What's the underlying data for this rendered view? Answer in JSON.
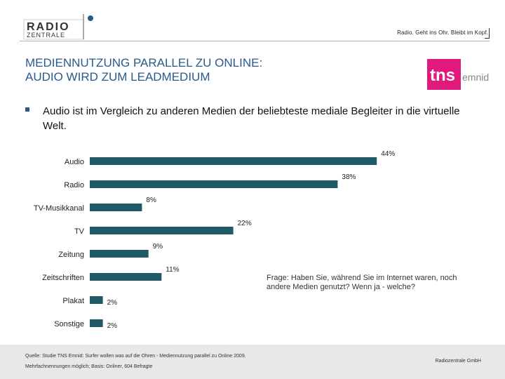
{
  "header": {
    "logo_word1": "RADIO",
    "logo_word2": "ZENTRALE",
    "tagline": "Radio. Geht ins Ohr. Bleibt im Kopf."
  },
  "title_lines": [
    "MEDIENNUTZUNG PARALLEL ZU ONLINE:",
    "AUDIO WIRD ZUM LEADMEDIUM"
  ],
  "bullet": "Audio ist im Vergleich zu anderen Medien der beliebteste mediale Begleiter in die virtuelle Welt.",
  "tns_logo": {
    "word1": "tns",
    "word2": "emnid",
    "color": "#e0197d"
  },
  "question": "Frage: Haben Sie, während Sie im Internet waren, noch andere Medien genutzt? Wenn ja - welche?",
  "footer": {
    "source_line1": "Quelle: Studie TNS Emnid: Surfer wollen was auf die Ohren - Mediennutzung parallel zu Online 2009.",
    "source_line2": "Mehrfachnennungen möglich; Basis: Onliner, 604 Befragte",
    "organization": "Radiozentrale GmbH"
  },
  "colors": {
    "bar": "#1f5a66",
    "title": "#2a5a8a",
    "footer_bg": "#e8e8e8"
  },
  "chart_data": {
    "type": "bar",
    "orientation": "horizontal",
    "categories": [
      "Audio",
      "Radio",
      "TV-Musikkanal",
      "TV",
      "Zeitung",
      "Zeitschriften",
      "Plakat",
      "Sonstige"
    ],
    "values": [
      44,
      38,
      8,
      22,
      9,
      11,
      2,
      2
    ],
    "value_labels": [
      "44%",
      "38%",
      "8%",
      "22%",
      "9%",
      "11%",
      "2%",
      "2%"
    ],
    "unit": "%",
    "xlim": [
      0,
      50
    ],
    "title": "",
    "xlabel": "",
    "ylabel": "",
    "grid": false,
    "legend": "none"
  }
}
